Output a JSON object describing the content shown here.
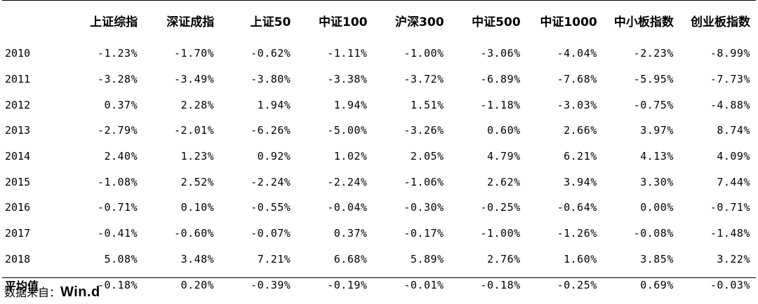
{
  "table": {
    "columns": [
      "",
      "上证综指",
      "深证成指",
      "上证50",
      "中证100",
      "沪深300",
      "中证500",
      "中证1000",
      "中小板指数",
      "创业板指数"
    ],
    "rows": [
      {
        "label": "2010",
        "values": [
          "-1.23%",
          "-1.70%",
          "-0.62%",
          "-1.11%",
          "-1.00%",
          "-3.06%",
          "-4.04%",
          "-2.23%",
          "-8.99%"
        ]
      },
      {
        "label": "2011",
        "values": [
          "-3.28%",
          "-3.49%",
          "-3.80%",
          "-3.38%",
          "-3.72%",
          "-6.89%",
          "-7.68%",
          "-5.95%",
          "-7.73%"
        ]
      },
      {
        "label": "2012",
        "values": [
          "0.37%",
          "2.28%",
          "1.94%",
          "1.94%",
          "1.51%",
          "-1.18%",
          "-3.03%",
          "-0.75%",
          "-4.88%"
        ]
      },
      {
        "label": "2013",
        "values": [
          "-2.79%",
          "-2.01%",
          "-6.26%",
          "-5.00%",
          "-3.26%",
          "0.60%",
          "2.66%",
          "3.97%",
          "8.74%"
        ]
      },
      {
        "label": "2014",
        "values": [
          "2.40%",
          "1.23%",
          "0.92%",
          "1.02%",
          "2.05%",
          "4.79%",
          "6.21%",
          "4.13%",
          "4.09%"
        ]
      },
      {
        "label": "2015",
        "values": [
          "-1.08%",
          "2.52%",
          "-2.24%",
          "-2.24%",
          "-1.06%",
          "2.62%",
          "3.94%",
          "3.30%",
          "7.44%"
        ]
      },
      {
        "label": "2016",
        "values": [
          "-0.71%",
          "0.10%",
          "-0.55%",
          "-0.04%",
          "-0.30%",
          "-0.25%",
          "-0.64%",
          "0.00%",
          "-0.71%"
        ]
      },
      {
        "label": "2017",
        "values": [
          "-0.41%",
          "-0.60%",
          "-0.07%",
          "0.37%",
          "-0.17%",
          "-1.00%",
          "-1.26%",
          "-0.08%",
          "-1.48%"
        ]
      },
      {
        "label": "2018",
        "values": [
          "5.08%",
          "3.48%",
          "7.21%",
          "6.68%",
          "5.89%",
          "2.76%",
          "1.60%",
          "3.85%",
          "3.22%"
        ]
      },
      {
        "label": "平均值",
        "values": [
          "-0.18%",
          "0.20%",
          "-0.39%",
          "-0.19%",
          "-0.01%",
          "-0.18%",
          "-0.25%",
          "0.69%",
          "-0.03%"
        ]
      }
    ]
  },
  "source": {
    "label": "数据来自：",
    "brand": "Win.d"
  }
}
